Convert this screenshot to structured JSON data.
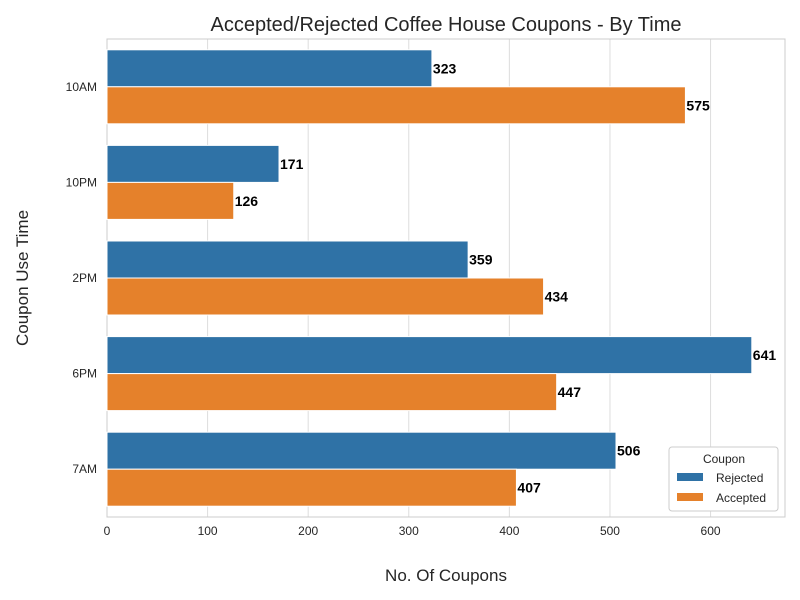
{
  "chart_data": {
    "type": "bar",
    "orientation": "horizontal",
    "title": "Accepted/Rejected Coffee House Coupons - By Time",
    "xlabel": "No. Of Coupons",
    "ylabel": "Coupon Use Time",
    "categories": [
      "10AM",
      "10PM",
      "2PM",
      "6PM",
      "7AM"
    ],
    "series": [
      {
        "name": "Rejected",
        "values": [
          323,
          171,
          359,
          641,
          506
        ],
        "color": "#2f72a6"
      },
      {
        "name": "Accepted",
        "values": [
          575,
          126,
          434,
          447,
          407
        ],
        "color": "#e5812b"
      }
    ],
    "xlim": [
      0,
      674
    ],
    "xticks": [
      0,
      100,
      200,
      300,
      400,
      500,
      600
    ],
    "grid": true,
    "legend": {
      "title": "Coupon",
      "placement": "bottom-right"
    }
  }
}
